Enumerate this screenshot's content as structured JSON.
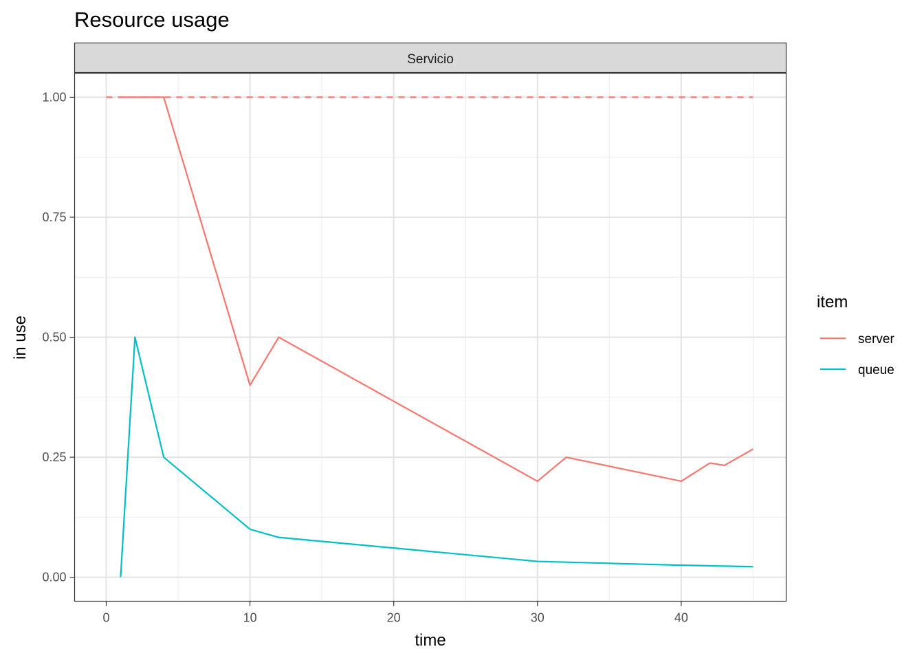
{
  "chart_data": {
    "type": "line",
    "title": "Resource usage",
    "facet_label": "Servicio",
    "xlabel": "time",
    "ylabel": "in use",
    "xlim": [
      -2.2,
      47.3
    ],
    "ylim": [
      -0.05,
      1.05
    ],
    "x_ticks": [
      0,
      10,
      20,
      30,
      40
    ],
    "x_tick_labels": [
      "0",
      "10",
      "20",
      "30",
      "40"
    ],
    "x_minor_ticks": [
      5,
      15,
      25,
      35,
      45
    ],
    "y_ticks": [
      0,
      0.25,
      0.5,
      0.75,
      1.0
    ],
    "y_tick_labels": [
      "0.00",
      "0.25",
      "0.50",
      "0.75",
      "1.00"
    ],
    "y_minor_ticks": [
      0.125,
      0.375,
      0.625,
      0.875
    ],
    "grid": true,
    "legend": {
      "title": "item",
      "position": "right",
      "entries": [
        "server",
        "queue"
      ]
    },
    "colors": {
      "server": "#F8766D",
      "queue": "#00BFC4"
    },
    "series": [
      {
        "name": "server",
        "x": [
          1,
          2,
          3,
          4,
          10,
          12,
          30,
          32,
          40,
          42,
          43,
          45
        ],
        "values": [
          1.0,
          1.0,
          1.0,
          1.0,
          0.4,
          0.5,
          0.2,
          0.25,
          0.2,
          0.238,
          0.233,
          0.267
        ]
      },
      {
        "name": "queue",
        "x": [
          1,
          2,
          4,
          10,
          12,
          30,
          40,
          45
        ],
        "values": [
          0.0,
          0.5,
          0.25,
          0.1,
          0.083,
          0.033,
          0.025,
          0.022
        ]
      }
    ],
    "reference_lines": [
      {
        "series": "server",
        "style": "dashed",
        "x": [
          0,
          45
        ],
        "values": [
          1.0,
          1.0
        ]
      }
    ]
  }
}
